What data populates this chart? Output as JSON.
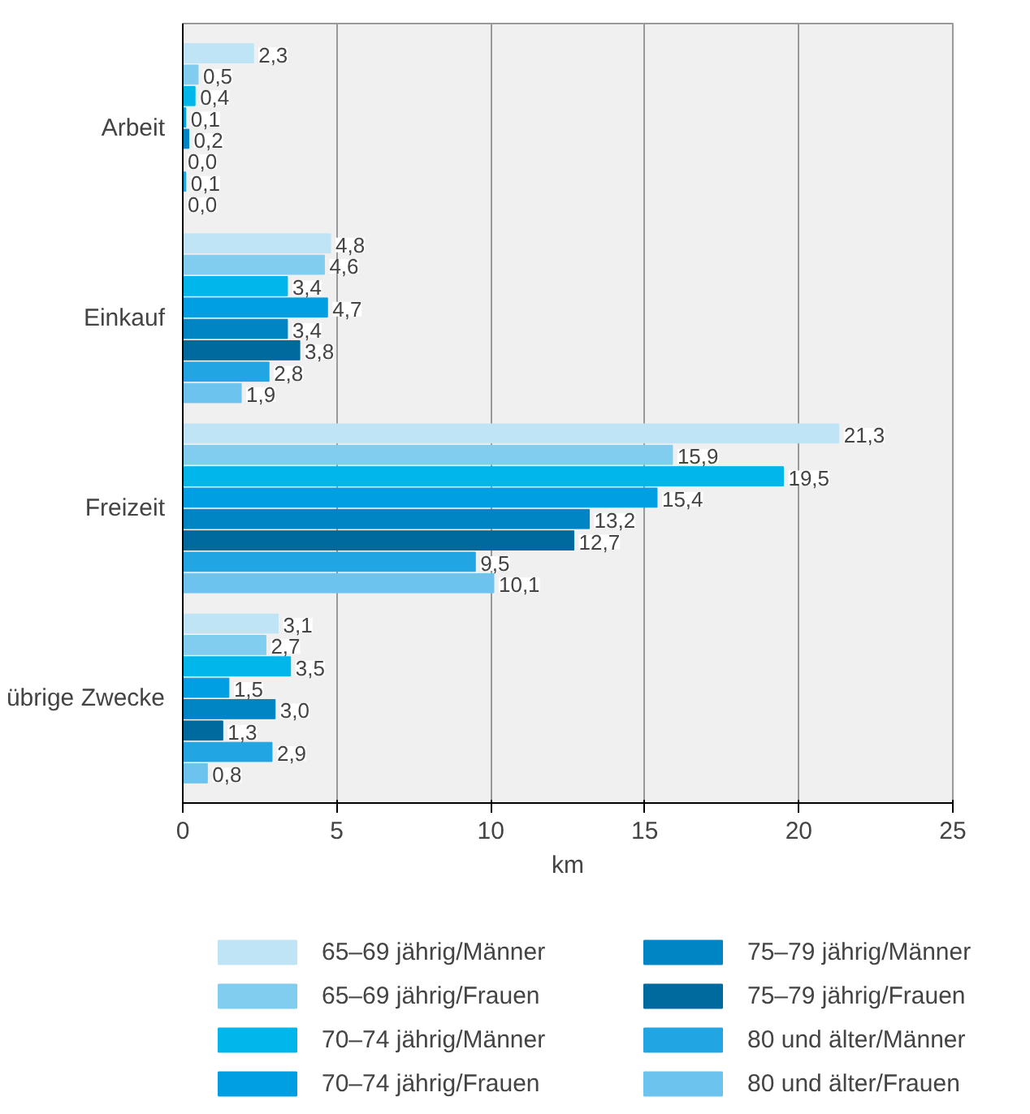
{
  "chart_data": {
    "type": "bar",
    "orientation": "horizontal",
    "xlabel": "km",
    "categories": [
      "Arbeit",
      "Einkauf",
      "Freizeit",
      "übrige Zwecke"
    ],
    "xlim": [
      0,
      25
    ],
    "xticks": [
      0,
      5,
      10,
      15,
      20,
      25
    ],
    "grid": "x",
    "legend": "bottom",
    "series": [
      {
        "name": "65–69 jährig/Männer",
        "color": "#bfe4f6",
        "values": [
          2.3,
          4.8,
          21.3,
          3.1
        ],
        "value_labels": [
          "2,3",
          "4,8",
          "21,3",
          "3,1"
        ]
      },
      {
        "name": "65–69 jährig/Frauen",
        "color": "#80cdef",
        "values": [
          0.5,
          4.6,
          15.9,
          2.7
        ],
        "value_labels": [
          "0,5",
          "4,6",
          "15,9",
          "2,7"
        ]
      },
      {
        "name": "70–74 jährig/Männer",
        "color": "#00b6ea",
        "values": [
          0.4,
          3.4,
          19.5,
          3.5
        ],
        "value_labels": [
          "0,4",
          "3,4",
          "19,5",
          "3,5"
        ]
      },
      {
        "name": "70–74 jährig/Frauen",
        "color": "#009fe3",
        "values": [
          0.1,
          4.7,
          15.4,
          1.5
        ],
        "value_labels": [
          "0,1",
          "4,7",
          "15,4",
          "1,5"
        ]
      },
      {
        "name": "75–79 jährig/Männer",
        "color": "#0085c4",
        "values": [
          0.2,
          3.4,
          13.2,
          3.0
        ],
        "value_labels": [
          "0,2",
          "3,4",
          "13,2",
          "3,0"
        ]
      },
      {
        "name": "75–79 jährig/Frauen",
        "color": "#006a9e",
        "values": [
          0.0,
          3.8,
          12.7,
          1.3
        ],
        "value_labels": [
          "0,0",
          "3,8",
          "12,7",
          "1,3"
        ]
      },
      {
        "name": "80 und älter/Männer",
        "color": "#22a6e3",
        "values": [
          0.1,
          2.8,
          9.5,
          2.9
        ],
        "value_labels": [
          "0,1",
          "2,8",
          "9,5",
          "2,9"
        ]
      },
      {
        "name": "80 und älter/Frauen",
        "color": "#6cc4ee",
        "values": [
          0.0,
          1.9,
          10.1,
          0.8
        ],
        "value_labels": [
          "0,0",
          "1,9",
          "10,1",
          "0,8"
        ]
      }
    ]
  }
}
